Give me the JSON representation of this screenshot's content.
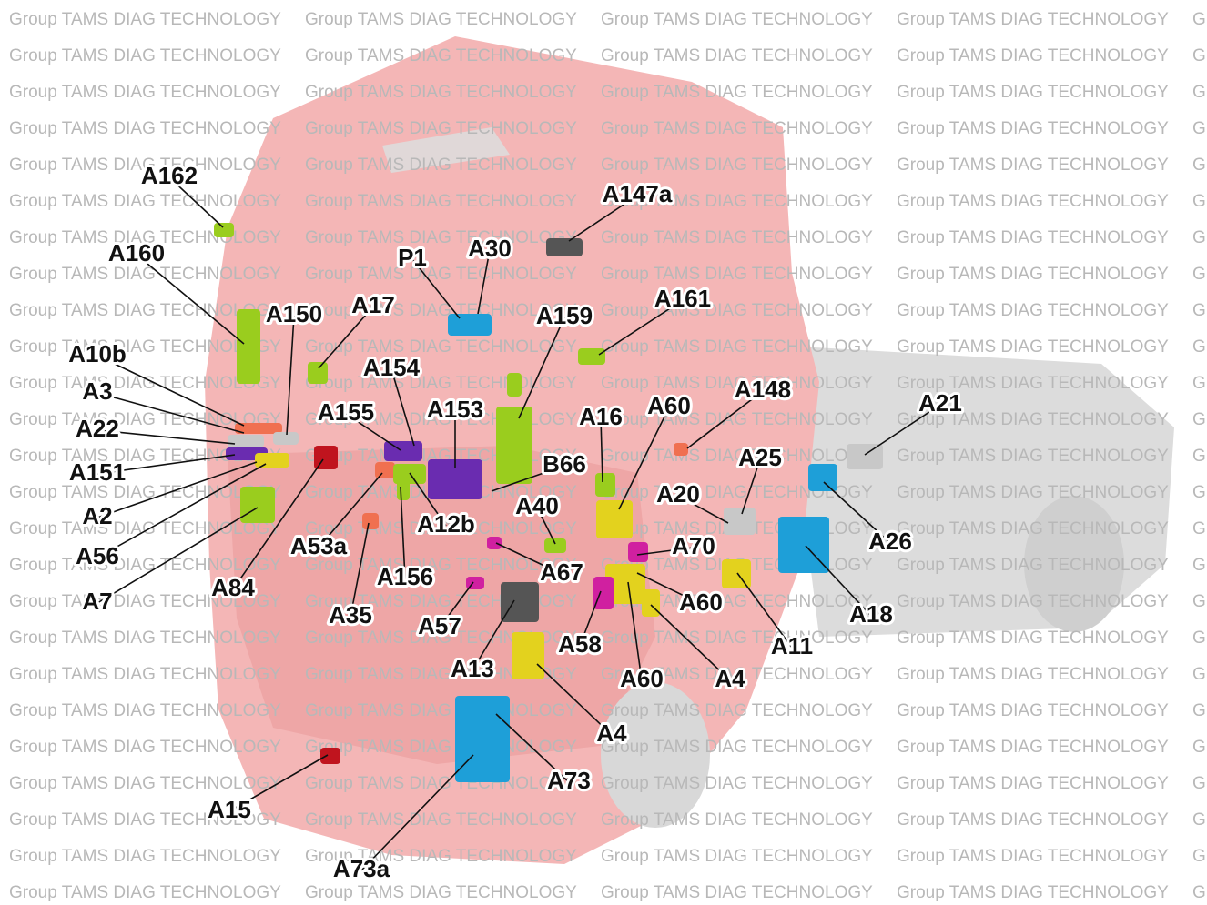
{
  "watermark": "Group TAMS DIAG TECHNOLOGY",
  "labels": [
    "A162",
    "A160",
    "A150",
    "A17",
    "P1",
    "A30",
    "A147a",
    "A159",
    "A161",
    "A10b",
    "A3",
    "A22",
    "A151",
    "A2",
    "A56",
    "A7",
    "A154",
    "A155",
    "A153",
    "A148",
    "A16",
    "A60",
    "B66",
    "A21",
    "A25",
    "A20",
    "A26",
    "A12b",
    "A53a",
    "A40",
    "A84",
    "A35",
    "A156",
    "A67",
    "A70",
    "A18",
    "A11",
    "A60",
    "A57",
    "A13",
    "A58",
    "A60",
    "A4",
    "A4",
    "A73",
    "A73a",
    "A15"
  ]
}
